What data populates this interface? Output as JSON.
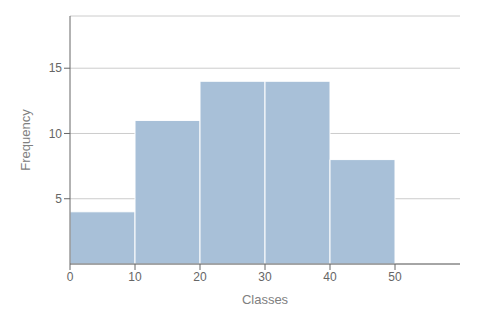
{
  "chart_data": {
    "type": "histogram",
    "bins": [
      0,
      10,
      20,
      30,
      40,
      50
    ],
    "values": [
      4,
      11,
      14,
      14,
      8
    ],
    "color": "#a8c0d8",
    "xlabel": "Classes",
    "ylabel": "Frequency",
    "xlim": [
      0,
      60
    ],
    "ylim": [
      0,
      19
    ],
    "xticks": [
      0,
      10,
      20,
      30,
      40,
      50
    ],
    "yticks": [
      5,
      10,
      15
    ],
    "grid": true
  }
}
